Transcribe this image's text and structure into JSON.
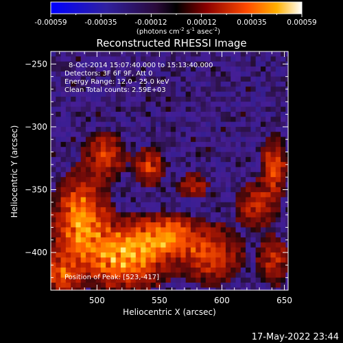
{
  "colorbar": {
    "tick_labels": [
      "-0.00059",
      "-0.00035",
      "-0.00012",
      "0.00012",
      "0.00035",
      "0.00059"
    ],
    "unit_prefix": "(photons cm",
    "unit_sup1": "-2",
    "unit_mid1": " s",
    "unit_sup2": "-1",
    "unit_mid2": " asec",
    "unit_sup3": "-2",
    "unit_suffix": ")"
  },
  "title": "Reconstructed RHESSI Image",
  "annotations": {
    "time_range": "8-Oct-2014 15:07:40.000 to 15:13:40.000",
    "detectors": "Detectors: 3F 6F 9F, Att 0",
    "energy_range": "Energy Range: 12.0 - 25.0 keV",
    "method": "Clean     Total counts: 2.59E+03",
    "position": "Position of Peak: [523,-417]"
  },
  "footer_timestamp": "17-May-2022 23:44",
  "chart_data": {
    "type": "heatmap",
    "title": "Reconstructed RHESSI Image",
    "xlabel": "Heliocentric X (arcsec)",
    "ylabel": "Heliocentric Y (arcsec)",
    "xlim": [
      463,
      653
    ],
    "ylim": [
      -430,
      -240
    ],
    "x_ticks": [
      500,
      550,
      600,
      650
    ],
    "x_tick_labels": [
      "500",
      "550",
      "600",
      "650"
    ],
    "y_ticks": [
      -250,
      -300,
      -350,
      -400
    ],
    "y_tick_labels": [
      "−250",
      "−300",
      "−350",
      "−400"
    ],
    "colorscale_range": [
      -0.00059,
      0.00059
    ],
    "colormap": [
      "#0000ff",
      "#2a1a8a",
      "#4a1a6a",
      "#1a0a10",
      "#6a0a0a",
      "#b82000",
      "#ff5a00",
      "#ffa000",
      "#ffe840",
      "#ffffff"
    ],
    "peak_position": [
      523,
      -417
    ],
    "pixel_size": 4,
    "blobs": [
      {
        "x": 520,
        "y": -400,
        "amp": 1.0,
        "sx": 30,
        "sy": 22
      },
      {
        "x": 485,
        "y": -372,
        "amp": 0.85,
        "sx": 18,
        "sy": 30
      },
      {
        "x": 555,
        "y": -385,
        "amp": 0.7,
        "sx": 22,
        "sy": 15
      },
      {
        "x": 505,
        "y": -320,
        "amp": 0.55,
        "sx": 14,
        "sy": 16
      },
      {
        "x": 590,
        "y": -400,
        "amp": 0.55,
        "sx": 22,
        "sy": 20
      },
      {
        "x": 540,
        "y": -330,
        "amp": 0.55,
        "sx": 10,
        "sy": 14
      },
      {
        "x": 640,
        "y": -330,
        "amp": 0.6,
        "sx": 9,
        "sy": 22
      },
      {
        "x": 625,
        "y": -360,
        "amp": 0.45,
        "sx": 14,
        "sy": 16
      },
      {
        "x": 640,
        "y": -405,
        "amp": 0.4,
        "sx": 12,
        "sy": 18
      },
      {
        "x": 575,
        "y": -345,
        "amp": 0.35,
        "sx": 12,
        "sy": 10
      },
      {
        "x": 470,
        "y": -415,
        "amp": 0.6,
        "sx": 12,
        "sy": 16
      }
    ]
  }
}
